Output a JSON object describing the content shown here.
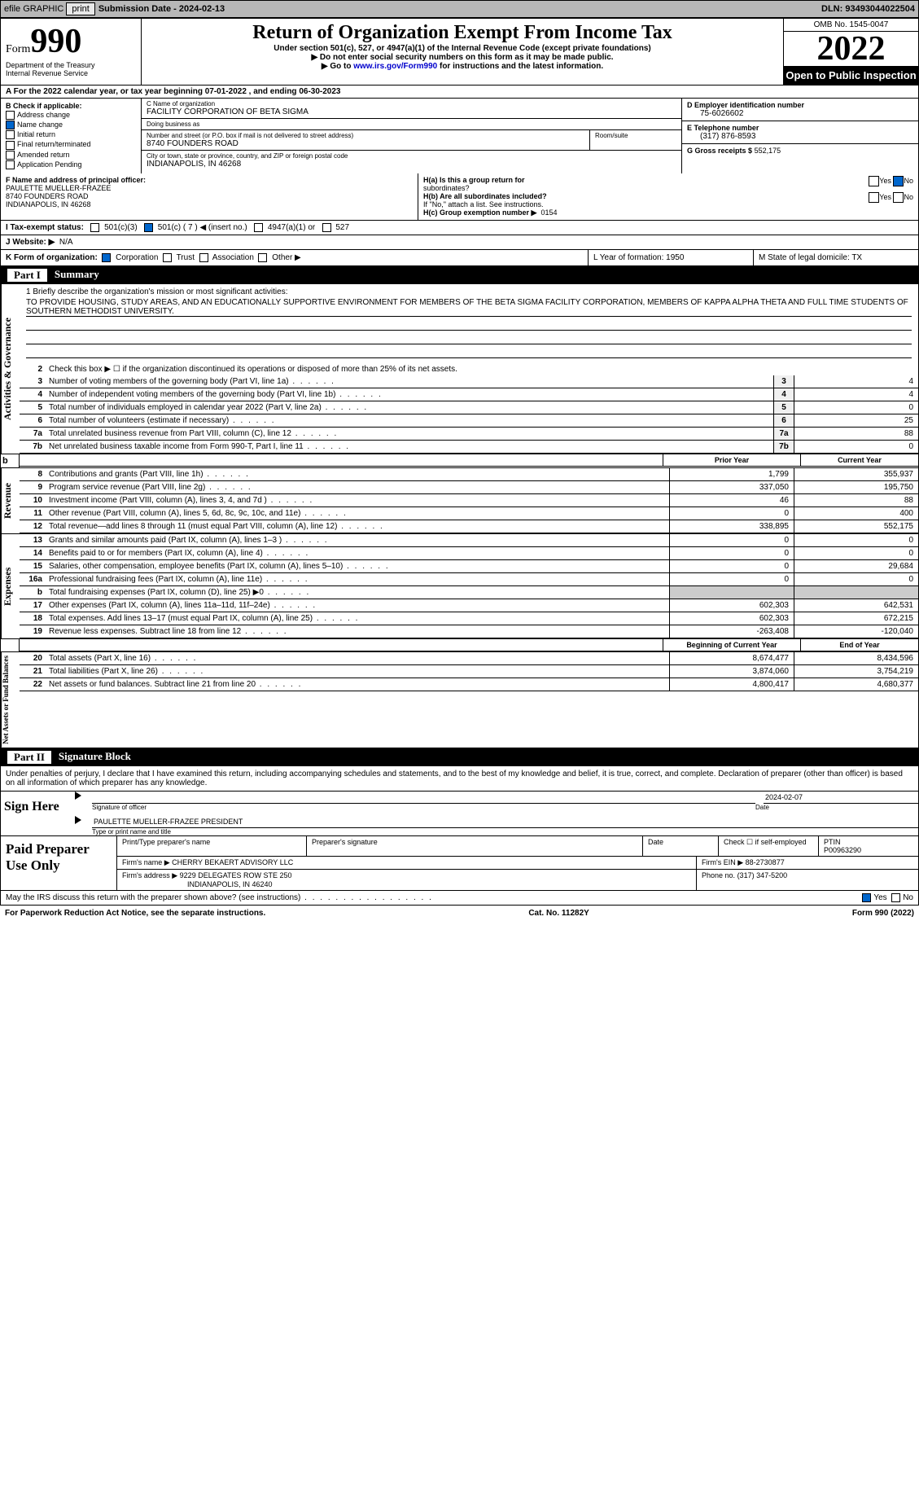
{
  "topbar": {
    "efile": "efile GRAPHIC",
    "print": "print",
    "subLabel": "Submission Date - ",
    "subDate": "2024-02-13",
    "dln": "DLN: 93493044022504"
  },
  "header": {
    "formWord": "Form",
    "formNum": "990",
    "dept": "Department of the Treasury",
    "irs": "Internal Revenue Service",
    "title": "Return of Organization Exempt From Income Tax",
    "sub": "Under section 501(c), 527, or 4947(a)(1) of the Internal Revenue Code (except private foundations)",
    "sub2": "▶ Do not enter social security numbers on this form as it may be made public.",
    "sub3a": "▶ Go to ",
    "sub3link": "www.irs.gov/Form990",
    "sub3b": " for instructions and the latest information.",
    "omb": "OMB No. 1545-0047",
    "year": "2022",
    "opi": "Open to Public Inspection"
  },
  "rowA": {
    "text": "A For the 2022 calendar year, or tax year beginning 07-01-2022    , and ending 06-30-2023"
  },
  "colB": {
    "label": "B Check if applicable:",
    "items": [
      "Address change",
      "Name change",
      "Initial return",
      "Final return/terminated",
      "Amended return",
      "Application Pending"
    ],
    "checked": [
      false,
      true,
      false,
      false,
      false,
      false
    ]
  },
  "boxC": {
    "nameLbl": "C Name of organization",
    "name": "FACILITY CORPORATION OF BETA SIGMA",
    "dbaLbl": "Doing business as",
    "dba": "",
    "addrLbl": "Number and street (or P.O. box if mail is not delivered to street address)",
    "roomLbl": "Room/suite",
    "addr": "8740 FOUNDERS ROAD",
    "cityLbl": "City or town, state or province, country, and ZIP or foreign postal code",
    "city": "INDIANAPOLIS, IN  46268"
  },
  "colD": {
    "einLbl": "D Employer identification number",
    "ein": "75-6026602",
    "telLbl": "E Telephone number",
    "tel": "(317) 876-8593",
    "grossLbl": "G Gross receipts $",
    "gross": "552,175"
  },
  "boxF": {
    "lbl": "F  Name and address of principal officer:",
    "name": "PAULETTE MUELLER-FRAZEE",
    "addr": "8740 FOUNDERS ROAD",
    "city": "INDIANAPOLIS, IN  46268"
  },
  "boxH": {
    "ha": "H(a)  Is this a group return for",
    "ha2": "subordinates?",
    "hb": "H(b)  Are all subordinates included?",
    "hbNote": "If \"No,\" attach a list. See instructions.",
    "hc": "H(c)  Group exemption number ▶",
    "hcVal": "0154",
    "yes": "Yes",
    "no": "No"
  },
  "rowI": {
    "lbl": "I   Tax-exempt status:",
    "opts": [
      "501(c)(3)",
      "501(c) ( 7 ) ◀ (insert no.)",
      "4947(a)(1) or",
      "527"
    ],
    "checked": 1
  },
  "rowJ": {
    "lbl": "J   Website: ▶",
    "val": "N/A"
  },
  "rowK": {
    "klbl": "K Form of organization:",
    "opts": [
      "Corporation",
      "Trust",
      "Association",
      "Other ▶"
    ],
    "checked": 0,
    "L": "L Year of formation: 1950",
    "M": "M State of legal domicile: TX"
  },
  "part1": {
    "num": "Part I",
    "title": "Summary"
  },
  "mission": {
    "lbl": "1   Briefly describe the organization's mission or most significant activities:",
    "text": "TO PROVIDE HOUSING, STUDY AREAS, AND AN EDUCATIONALLY SUPPORTIVE ENVIRONMENT FOR MEMBERS OF THE BETA SIGMA FACILITY CORPORATION, MEMBERS OF KAPPA ALPHA THETA AND FULL TIME STUDENTS OF SOUTHERN METHODIST UNIVERSITY."
  },
  "line2": "Check this box ▶ ☐ if the organization discontinued its operations or disposed of more than 25% of its net assets.",
  "gov": [
    {
      "n": "3",
      "t": "Number of voting members of the governing body (Part VI, line 1a)",
      "v": "4"
    },
    {
      "n": "4",
      "t": "Number of independent voting members of the governing body (Part VI, line 1b)",
      "v": "4"
    },
    {
      "n": "5",
      "t": "Total number of individuals employed in calendar year 2022 (Part V, line 2a)",
      "v": "0"
    },
    {
      "n": "6",
      "t": "Total number of volunteers (estimate if necessary)",
      "v": "25"
    },
    {
      "n": "7a",
      "t": "Total unrelated business revenue from Part VIII, column (C), line 12",
      "v": "88"
    },
    {
      "n": "7b",
      "t": "Net unrelated business taxable income from Form 990-T, Part I, line 11",
      "v": "0"
    }
  ],
  "cols": {
    "prior": "Prior Year",
    "current": "Current Year",
    "begin": "Beginning of Current Year",
    "end": "End of Year"
  },
  "rev": [
    {
      "n": "8",
      "t": "Contributions and grants (Part VIII, line 1h)",
      "p": "1,799",
      "c": "355,937"
    },
    {
      "n": "9",
      "t": "Program service revenue (Part VIII, line 2g)",
      "p": "337,050",
      "c": "195,750"
    },
    {
      "n": "10",
      "t": "Investment income (Part VIII, column (A), lines 3, 4, and 7d )",
      "p": "46",
      "c": "88"
    },
    {
      "n": "11",
      "t": "Other revenue (Part VIII, column (A), lines 5, 6d, 8c, 9c, 10c, and 11e)",
      "p": "0",
      "c": "400"
    },
    {
      "n": "12",
      "t": "Total revenue—add lines 8 through 11 (must equal Part VIII, column (A), line 12)",
      "p": "338,895",
      "c": "552,175"
    }
  ],
  "exp": [
    {
      "n": "13",
      "t": "Grants and similar amounts paid (Part IX, column (A), lines 1–3 )",
      "p": "0",
      "c": "0"
    },
    {
      "n": "14",
      "t": "Benefits paid to or for members (Part IX, column (A), line 4)",
      "p": "0",
      "c": "0"
    },
    {
      "n": "15",
      "t": "Salaries, other compensation, employee benefits (Part IX, column (A), lines 5–10)",
      "p": "0",
      "c": "29,684"
    },
    {
      "n": "16a",
      "t": "Professional fundraising fees (Part IX, column (A), line 11e)",
      "p": "0",
      "c": "0"
    },
    {
      "n": "b",
      "t": "Total fundraising expenses (Part IX, column (D), line 25) ▶0",
      "p": "",
      "c": "",
      "shade": true
    },
    {
      "n": "17",
      "t": "Other expenses (Part IX, column (A), lines 11a–11d, 11f–24e)",
      "p": "602,303",
      "c": "642,531"
    },
    {
      "n": "18",
      "t": "Total expenses. Add lines 13–17 (must equal Part IX, column (A), line 25)",
      "p": "602,303",
      "c": "672,215"
    },
    {
      "n": "19",
      "t": "Revenue less expenses. Subtract line 18 from line 12",
      "p": "-263,408",
      "c": "-120,040"
    }
  ],
  "net": [
    {
      "n": "20",
      "t": "Total assets (Part X, line 16)",
      "p": "8,674,477",
      "c": "8,434,596"
    },
    {
      "n": "21",
      "t": "Total liabilities (Part X, line 26)",
      "p": "3,874,060",
      "c": "3,754,219"
    },
    {
      "n": "22",
      "t": "Net assets or fund balances. Subtract line 21 from line 20",
      "p": "4,800,417",
      "c": "4,680,377"
    }
  ],
  "vtabs": {
    "gov": "Activities & Governance",
    "rev": "Revenue",
    "exp": "Expenses",
    "net": "Net Assets or Fund Balances"
  },
  "part2": {
    "num": "Part II",
    "title": "Signature Block"
  },
  "sigDecl": "Under penalties of perjury, I declare that I have examined this return, including accompanying schedules and statements, and to the best of my knowledge and belief, it is true, correct, and complete. Declaration of preparer (other than officer) is based on all information of which preparer has any knowledge.",
  "sig": {
    "here": "Sign Here",
    "sigOff": "Signature of officer",
    "date": "Date",
    "dateVal": "2024-02-07",
    "name": "PAULETTE MUELLER-FRAZEE  PRESIDENT",
    "nameLbl": "Type or print name and title"
  },
  "prep": {
    "title": "Paid Preparer Use Only",
    "pn": "Print/Type preparer's name",
    "ps": "Preparer's signature",
    "dt": "Date",
    "chk": "Check ☐ if self-employed",
    "ptin": "PTIN",
    "ptinV": "P00963290",
    "firm": "Firm's name   ▶",
    "firmV": "CHERRY BEKAERT ADVISORY LLC",
    "ein": "Firm's EIN ▶",
    "einV": "88-2730877",
    "addr": "Firm's address ▶",
    "addrV": "9229 DELEGATES ROW STE 250",
    "city": "INDIANAPOLIS, IN  46240",
    "ph": "Phone no.",
    "phV": "(317) 347-5200"
  },
  "discuss": "May the IRS discuss this return with the preparer shown above? (see instructions)",
  "foot": {
    "pra": "For Paperwork Reduction Act Notice, see the separate instructions.",
    "cat": "Cat. No. 11282Y",
    "form": "Form 990 (2022)"
  }
}
